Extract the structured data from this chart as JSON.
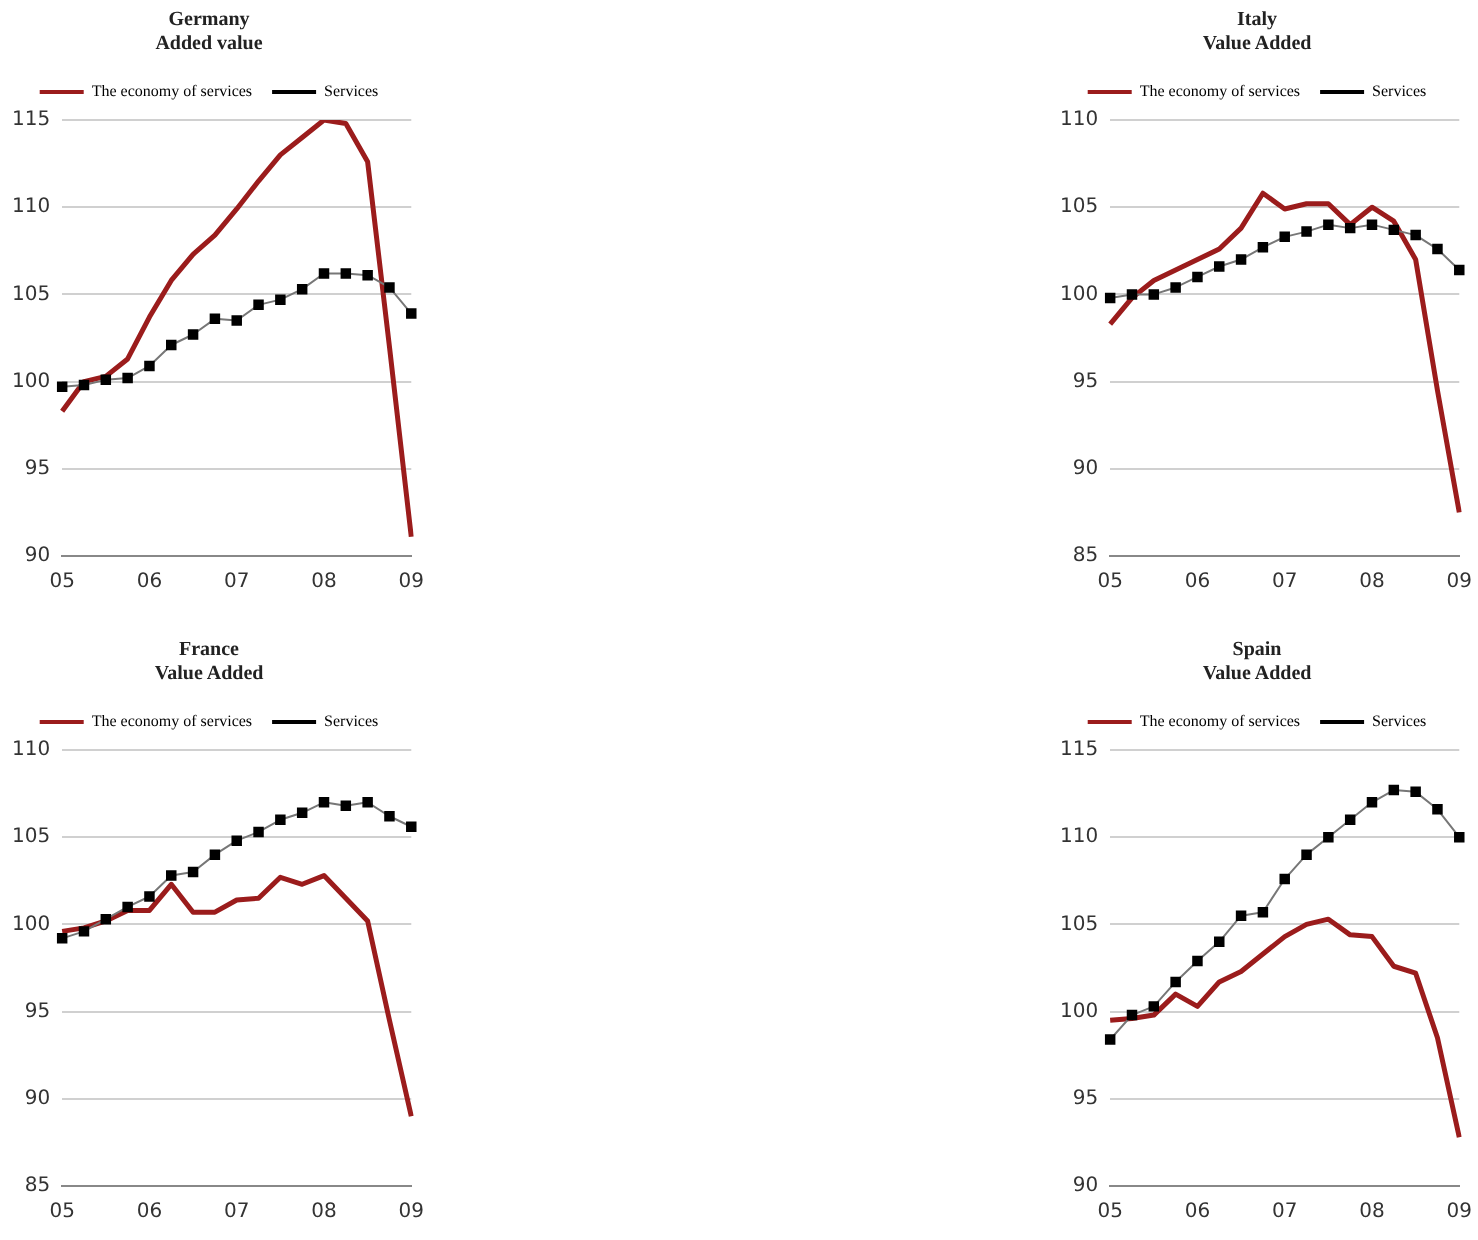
{
  "chart_data": [
    {
      "type": "line",
      "title": "Germany",
      "subtitle": "Added value",
      "categories": [
        "05",
        null,
        null,
        null,
        "06",
        null,
        null,
        null,
        "07",
        null,
        null,
        null,
        "08",
        null,
        null,
        null,
        "09"
      ],
      "ylim": [
        90,
        115
      ],
      "yticks": [
        90,
        95,
        100,
        105,
        110,
        115
      ],
      "grid": "y",
      "legend": "top",
      "series": [
        {
          "name": "The economy of services",
          "color": "#9b1c1c",
          "marker": "none",
          "values": [
            98.3,
            100.0,
            100.3,
            101.3,
            103.7,
            105.8,
            107.3,
            108.4,
            109.9,
            111.5,
            113.0,
            114.0,
            115.0,
            114.8,
            112.6,
            102.0,
            91.1
          ]
        },
        {
          "name": "Services",
          "color": "#000000",
          "marker": "square",
          "values": [
            99.7,
            99.8,
            100.1,
            100.2,
            100.9,
            102.1,
            102.7,
            103.6,
            103.5,
            104.4,
            104.7,
            105.3,
            106.2,
            106.2,
            106.1,
            105.4,
            103.9
          ]
        }
      ]
    },
    {
      "type": "line",
      "title": "Italy",
      "subtitle": "Value Added",
      "categories": [
        "05",
        null,
        null,
        null,
        "06",
        null,
        null,
        null,
        "07",
        null,
        null,
        null,
        "08",
        null,
        null,
        null,
        "09"
      ],
      "ylim": [
        85,
        110
      ],
      "yticks": [
        85,
        90,
        95,
        100,
        105,
        110
      ],
      "grid": "y",
      "legend": "top",
      "series": [
        {
          "name": "The economy of services",
          "color": "#9b1c1c",
          "marker": "none",
          "values": [
            98.3,
            99.8,
            100.8,
            101.4,
            102.0,
            102.6,
            103.8,
            105.8,
            104.9,
            105.2,
            105.2,
            104.0,
            105.0,
            104.2,
            102.0,
            94.5,
            87.5
          ]
        },
        {
          "name": "Services",
          "color": "#000000",
          "marker": "square",
          "values": [
            99.8,
            100.0,
            100.0,
            100.4,
            101.0,
            101.6,
            102.0,
            102.7,
            103.3,
            103.6,
            104.0,
            103.8,
            104.0,
            103.7,
            103.4,
            102.6,
            101.4
          ]
        }
      ]
    },
    {
      "type": "line",
      "title": "France",
      "subtitle": "Value Added",
      "categories": [
        "05",
        null,
        null,
        null,
        "06",
        null,
        null,
        null,
        "07",
        null,
        null,
        null,
        "08",
        null,
        null,
        null,
        "09"
      ],
      "ylim": [
        85,
        110
      ],
      "yticks": [
        85,
        90,
        95,
        100,
        105,
        110
      ],
      "grid": "y",
      "legend": "top",
      "series": [
        {
          "name": "The economy of services",
          "color": "#9b1c1c",
          "marker": "none",
          "values": [
            99.6,
            99.8,
            100.2,
            100.8,
            100.8,
            102.3,
            100.7,
            100.7,
            101.4,
            101.5,
            102.7,
            102.3,
            102.8,
            101.5,
            100.2,
            94.5,
            89.0
          ]
        },
        {
          "name": "Services",
          "color": "#000000",
          "marker": "square",
          "values": [
            99.2,
            99.6,
            100.3,
            101.0,
            101.6,
            102.8,
            103.0,
            104.0,
            104.8,
            105.3,
            106.0,
            106.4,
            107.0,
            106.8,
            107.0,
            106.2,
            105.6
          ]
        }
      ]
    },
    {
      "type": "line",
      "title": "Spain",
      "subtitle": "Value Added",
      "categories": [
        "05",
        null,
        null,
        null,
        "06",
        null,
        null,
        null,
        "07",
        null,
        null,
        null,
        "08",
        null,
        null,
        null,
        "09"
      ],
      "ylim": [
        90,
        115
      ],
      "yticks": [
        90,
        95,
        100,
        105,
        110,
        115
      ],
      "grid": "y",
      "legend": "top",
      "series": [
        {
          "name": "The economy of services",
          "color": "#9b1c1c",
          "marker": "none",
          "values": [
            99.5,
            99.6,
            99.8,
            101.0,
            100.3,
            101.7,
            102.3,
            103.3,
            104.3,
            105.0,
            105.3,
            104.4,
            104.3,
            102.6,
            102.2,
            98.5,
            92.8
          ]
        },
        {
          "name": "Services",
          "color": "#000000",
          "marker": "square",
          "values": [
            98.4,
            99.8,
            100.3,
            101.7,
            102.9,
            104.0,
            105.5,
            105.7,
            107.6,
            109.0,
            110.0,
            111.0,
            112.0,
            112.7,
            112.6,
            111.6,
            110.0
          ]
        }
      ]
    }
  ]
}
